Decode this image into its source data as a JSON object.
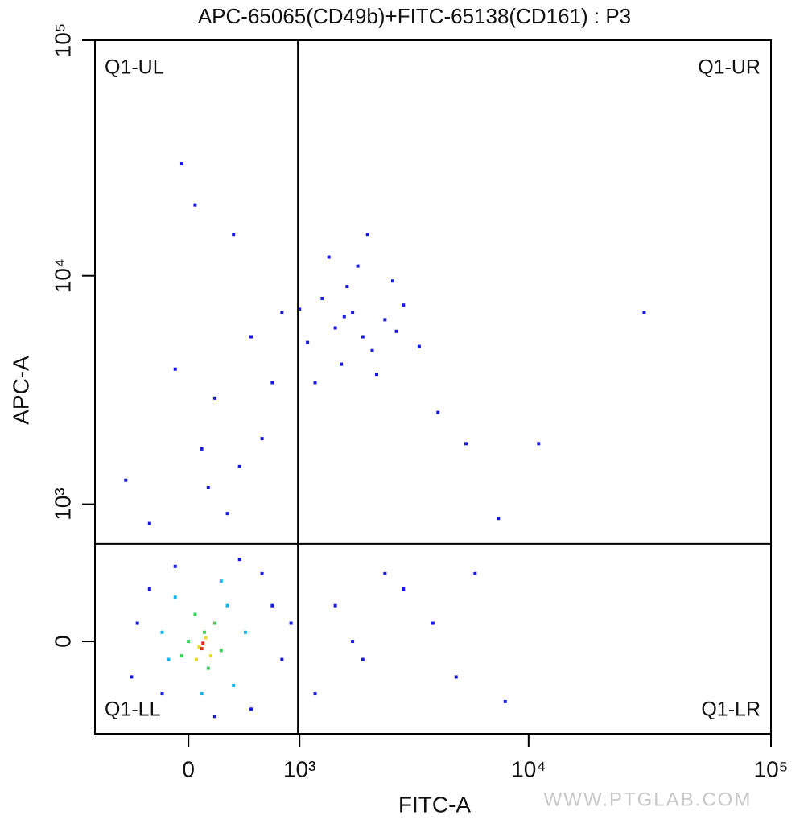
{
  "chart_data": {
    "type": "scatter",
    "title": "APC-65065(CD49b)+FITC-65138(CD161) : P3",
    "x_label": "FITC-A",
    "y_label": "APC-A",
    "watermark": "WWW.PTGLAB.COM",
    "xscale": "biexponential",
    "yscale": "biexponential",
    "xlim": [
      -800,
      100000
    ],
    "ylim": [
      -580,
      100000
    ],
    "xticks": [
      0,
      {
        "value": 1000,
        "label": "10³"
      },
      {
        "value": 10000,
        "label": "10⁴"
      },
      {
        "value": 100000,
        "label": "10⁵"
      }
    ],
    "yticks": [
      0,
      {
        "value": 1000,
        "label": "10³"
      },
      {
        "value": 10000,
        "label": "10⁴"
      },
      {
        "value": 100000,
        "label": "10⁵"
      }
    ],
    "gate": {
      "x": 980,
      "y": 620
    },
    "quadrants": {
      "ul": "Q1-UL",
      "ur": "Q1-UR",
      "ll": "Q1-LL",
      "lr": "Q1-LR"
    },
    "series": [
      {
        "color": "#1a1adc",
        "x": [
          1500,
          1800,
          2000,
          1300,
          2500,
          1700,
          2200,
          1100,
          3000,
          1600,
          1900,
          2700,
          1400,
          2300,
          1200,
          3500,
          2100,
          1000,
          2800,
          1650,
          -100,
          200,
          400,
          150,
          600,
          300,
          -300,
          500,
          700,
          100,
          -500,
          800,
          50,
          -50,
          350,
          1500,
          2000,
          3000,
          1200,
          2500,
          4000,
          5000,
          1800,
          8000,
          6000,
          30000,
          11000,
          5500,
          7500,
          4200,
          -400,
          -200,
          500,
          700,
          -300,
          600,
          200,
          -100,
          800,
          -450,
          400,
          900
        ],
        "y": [
          6000,
          7000,
          5500,
          8000,
          6500,
          9000,
          4800,
          5200,
          7500,
          4200,
          11000,
          9500,
          12000,
          3800,
          3500,
          5000,
          15000,
          7200,
          5800,
          6700,
          4000,
          3000,
          1500,
          1200,
          2000,
          900,
          800,
          5500,
          3500,
          1800,
          1300,
          7000,
          20000,
          30000,
          15000,
          200,
          -100,
          300,
          -300,
          400,
          100,
          -200,
          0,
          -350,
          400,
          7000,
          1900,
          1900,
          850,
          2600,
          100,
          -300,
          -400,
          200,
          300,
          400,
          -450,
          450,
          -100,
          -200,
          500,
          100
        ]
      },
      {
        "color": "#14b4e6",
        "x": [
          -150,
          350,
          300,
          -100,
          450,
          100,
          -200,
          250
        ],
        "y": [
          -100,
          -250,
          200,
          250,
          50,
          -300,
          50,
          350
        ]
      },
      {
        "color": "#3cd25a",
        "x": [
          0,
          150,
          200,
          50,
          -50,
          120,
          250
        ],
        "y": [
          0,
          -150,
          100,
          150,
          -80,
          50,
          -50
        ]
      },
      {
        "color": "#e6dc28",
        "x": [
          80,
          130,
          60,
          170
        ],
        "y": [
          -30,
          20,
          -100,
          -80
        ]
      },
      {
        "color": "#dc2814",
        "x": [
          100,
          110
        ],
        "y": [
          -40,
          -10
        ]
      }
    ]
  }
}
